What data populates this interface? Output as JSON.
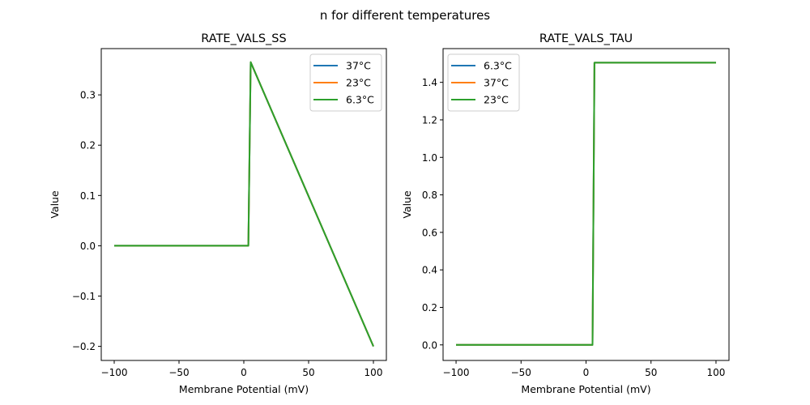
{
  "suptitle": "n for different temperatures",
  "colors": {
    "c0": "#1f77b4",
    "c1": "#ff7f0e",
    "c2": "#2ca02c"
  },
  "chart_data": [
    {
      "type": "line",
      "title": "RATE_VALS_SS",
      "xlabel": "Membrane Potential (mV)",
      "ylabel": "Value",
      "xlim": [
        -110,
        110
      ],
      "ylim": [
        -0.228,
        0.392
      ],
      "xticks": [
        -100,
        -50,
        0,
        50,
        100
      ],
      "xtick_labels": [
        "−100",
        "−50",
        "0",
        "50",
        "100"
      ],
      "yticks": [
        -0.2,
        -0.1,
        0.0,
        0.1,
        0.2,
        0.3
      ],
      "ytick_labels": [
        "−0.2",
        "−0.1",
        "0.0",
        "0.1",
        "0.2",
        "0.3"
      ],
      "grid": false,
      "legend": "top-right",
      "series": [
        {
          "name": "37°C",
          "color": "#1f77b4",
          "x": [
            -100,
            3.5,
            5.3,
            100
          ],
          "y": [
            0.0,
            0.0,
            0.365,
            -0.2
          ]
        },
        {
          "name": "23°C",
          "color": "#ff7f0e",
          "x": [
            -100,
            3.5,
            5.3,
            100
          ],
          "y": [
            0.0,
            0.0,
            0.365,
            -0.2
          ]
        },
        {
          "name": "6.3°C",
          "color": "#2ca02c",
          "x": [
            -100,
            3.5,
            5.3,
            100
          ],
          "y": [
            0.0,
            0.0,
            0.365,
            -0.2
          ]
        }
      ]
    },
    {
      "type": "line",
      "title": "RATE_VALS_TAU",
      "xlabel": "Membrane Potential (mV)",
      "ylabel": "Value",
      "xlim": [
        -110,
        110
      ],
      "ylim": [
        -0.083,
        1.58
      ],
      "xticks": [
        -100,
        -50,
        0,
        50,
        100
      ],
      "xtick_labels": [
        "−100",
        "−50",
        "0",
        "50",
        "100"
      ],
      "yticks": [
        0.0,
        0.2,
        0.4,
        0.6,
        0.8,
        1.0,
        1.2,
        1.4
      ],
      "ytick_labels": [
        "0.0",
        "0.2",
        "0.4",
        "0.6",
        "0.8",
        "1.0",
        "1.2",
        "1.4"
      ],
      "grid": false,
      "legend": "top-left",
      "series": [
        {
          "name": "6.3°C",
          "color": "#1f77b4",
          "x": [
            -100,
            5.0,
            6.5,
            100
          ],
          "y": [
            0.0,
            0.0,
            1.505,
            1.505
          ]
        },
        {
          "name": "37°C",
          "color": "#ff7f0e",
          "x": [
            -100,
            5.0,
            6.5,
            100
          ],
          "y": [
            0.0,
            0.0,
            1.505,
            1.505
          ]
        },
        {
          "name": "23°C",
          "color": "#2ca02c",
          "x": [
            -100,
            5.0,
            6.5,
            100
          ],
          "y": [
            0.0,
            0.0,
            1.505,
            1.505
          ]
        }
      ]
    }
  ]
}
